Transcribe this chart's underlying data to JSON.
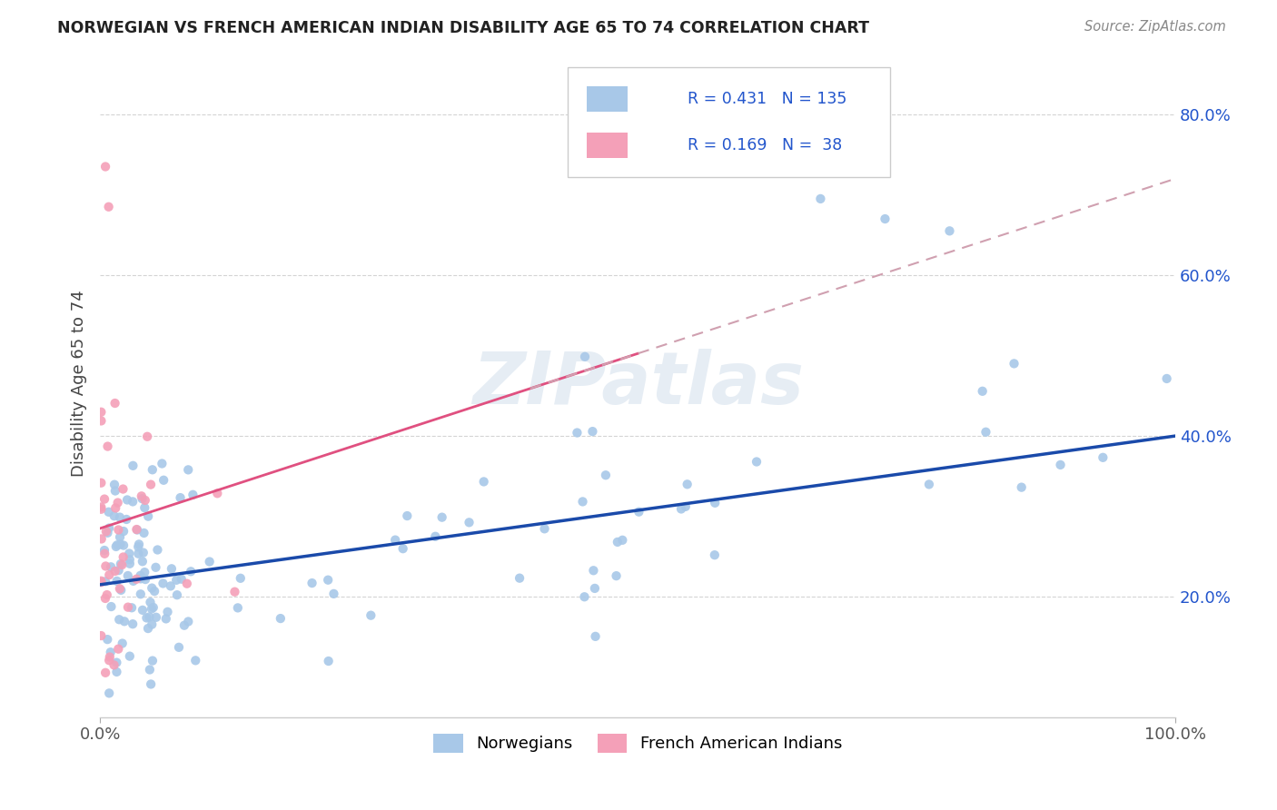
{
  "title": "NORWEGIAN VS FRENCH AMERICAN INDIAN DISABILITY AGE 65 TO 74 CORRELATION CHART",
  "source": "Source: ZipAtlas.com",
  "ylabel": "Disability Age 65 to 74",
  "xlim": [
    0.0,
    1.0
  ],
  "ylim": [
    0.05,
    0.88
  ],
  "xtick_positions": [
    0.0,
    1.0
  ],
  "xticklabels": [
    "0.0%",
    "100.0%"
  ],
  "ytick_positions": [
    0.2,
    0.4,
    0.6,
    0.8
  ],
  "yticklabels": [
    "20.0%",
    "40.0%",
    "60.0%",
    "80.0%"
  ],
  "norwegian_color": "#a8c8e8",
  "french_color": "#f4a0b8",
  "trendline_norwegian_color": "#1a4aaa",
  "trendline_french_solid_color": "#e05080",
  "trendline_french_dashed_color": "#d0a0b0",
  "legend_R_N_color": "#2255cc",
  "background_color": "#ffffff",
  "grid_color": "#d0d0d0",
  "nor_trend_x0": 0.0,
  "nor_trend_y0": 0.215,
  "nor_trend_x1": 1.0,
  "nor_trend_y1": 0.4,
  "fr_trend_x0": 0.0,
  "fr_trend_y0": 0.285,
  "fr_trend_x1": 1.0,
  "fr_trend_y1": 0.72
}
